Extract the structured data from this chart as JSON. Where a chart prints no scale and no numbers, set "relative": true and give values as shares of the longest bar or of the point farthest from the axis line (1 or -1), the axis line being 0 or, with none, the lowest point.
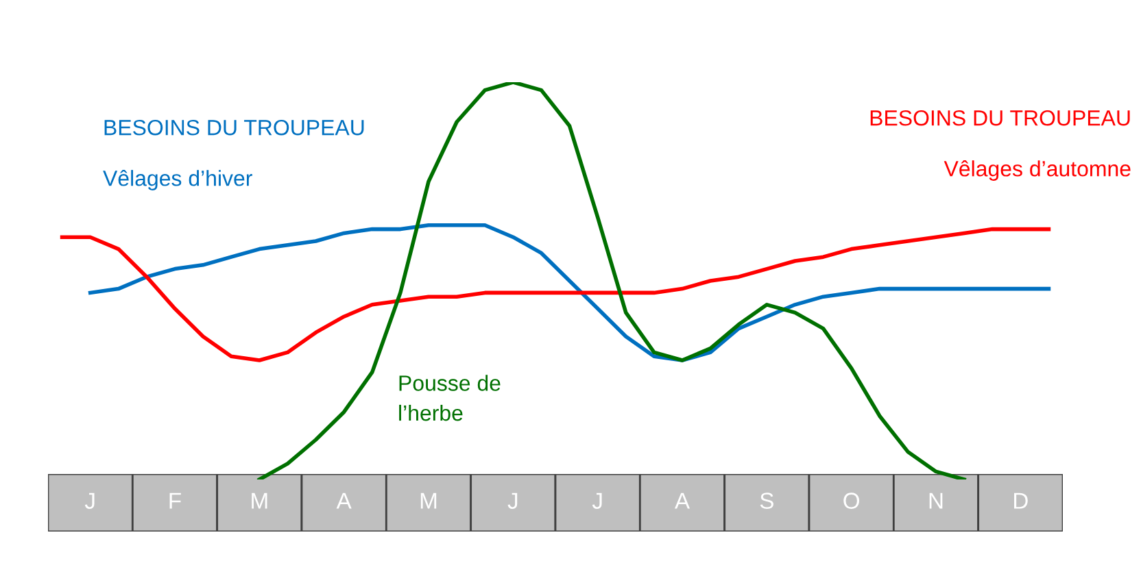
{
  "chart_data": {
    "type": "line",
    "relative": true,
    "categories": [
      null,
      "J",
      null,
      null,
      "F",
      null,
      null,
      "M",
      null,
      null,
      "A",
      null,
      null,
      "M",
      null,
      null,
      "J",
      null,
      null,
      "J",
      null,
      null,
      "A",
      null,
      null,
      "S",
      null,
      null,
      "O",
      null,
      null,
      "N",
      null,
      null,
      "D",
      null
    ],
    "series": [
      {
        "name": "BESOINS DU TROUPEAU\nVêlages d’hiver",
        "color": "#0070c0",
        "values": [
          null,
          0.47,
          0.48,
          0.51,
          0.53,
          0.54,
          0.56,
          0.58,
          0.59,
          0.6,
          0.62,
          0.63,
          0.63,
          0.64,
          0.64,
          0.64,
          0.61,
          0.57,
          0.5,
          0.43,
          0.36,
          0.31,
          0.3,
          0.32,
          0.38,
          0.41,
          0.44,
          0.46,
          0.47,
          0.48,
          0.48,
          0.48,
          0.48,
          0.48,
          0.48,
          0.48
        ]
      },
      {
        "name": "BESOINS DU TROUPEAU\nVêlages d’automne",
        "color": "#ff0000",
        "values": [
          0.61,
          0.61,
          0.58,
          0.51,
          0.43,
          0.36,
          0.31,
          0.3,
          0.32,
          0.37,
          0.41,
          0.44,
          0.45,
          0.46,
          0.46,
          0.47,
          0.47,
          0.47,
          0.47,
          0.47,
          0.47,
          0.47,
          0.48,
          0.5,
          0.51,
          0.53,
          0.55,
          0.56,
          0.58,
          0.59,
          0.6,
          0.61,
          0.62,
          0.63,
          0.63,
          0.63
        ]
      },
      {
        "name": "Pousse de\nl’herbe",
        "color": "#007000",
        "values": [
          null,
          null,
          null,
          null,
          null,
          null,
          null,
          0,
          0.04,
          0.1,
          0.17,
          0.27,
          0.47,
          0.75,
          0.9,
          0.98,
          1,
          0.98,
          0.89,
          0.66,
          0.42,
          0.32,
          0.3,
          0.33,
          0.39,
          0.44,
          0.42,
          0.38,
          0.28,
          0.16,
          0.07,
          0.02,
          0,
          null,
          null,
          null
        ]
      }
    ],
    "legend": false
  }
}
